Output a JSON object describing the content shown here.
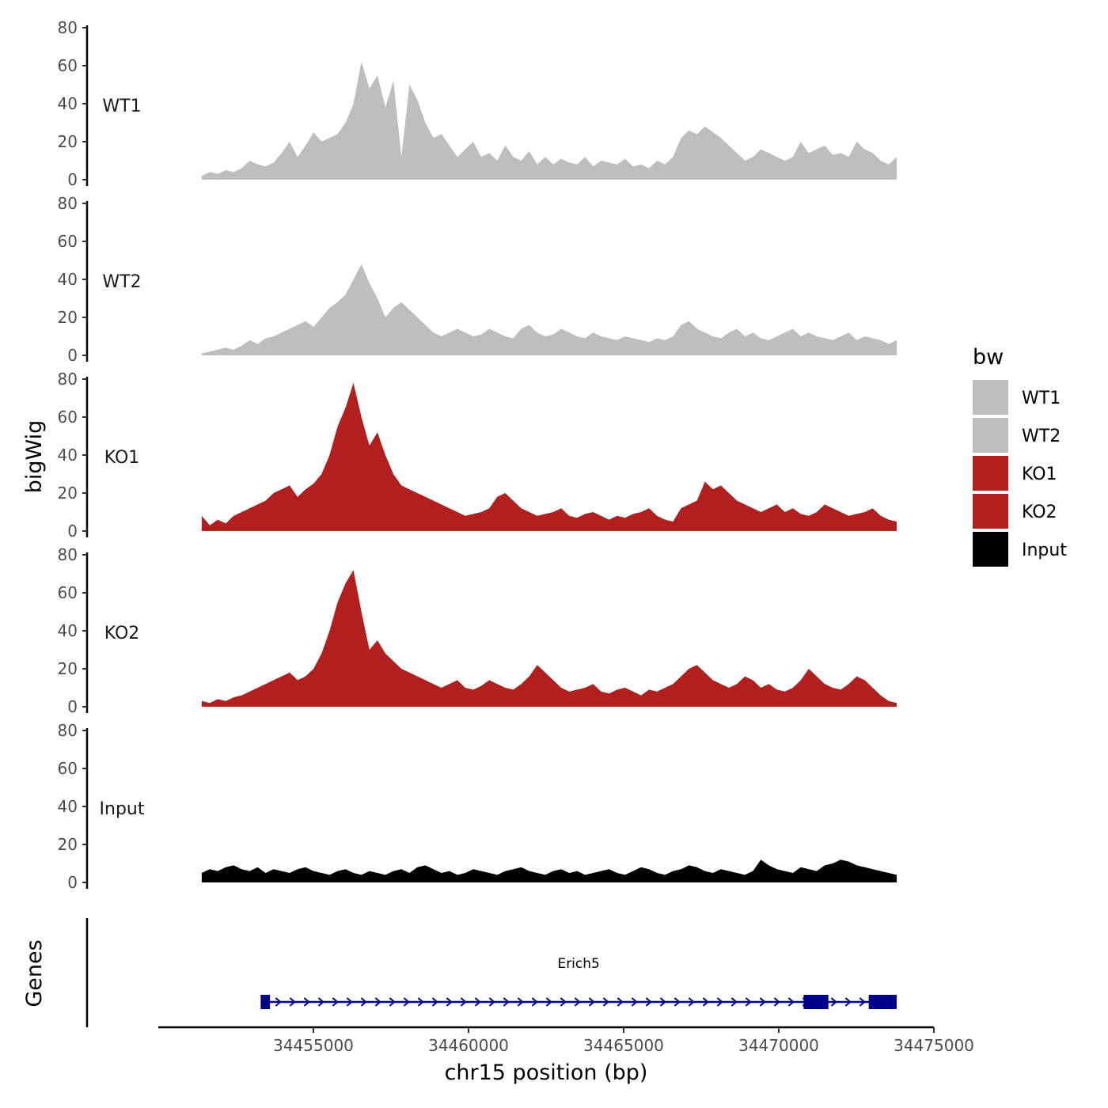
{
  "chart_data": {
    "type": "area",
    "y_title": "bigWig",
    "x_title": "chr15 position (bp)",
    "genes_title": "Genes",
    "legend_title": "bw",
    "ylim": [
      0,
      80
    ],
    "y_ticks": [
      "0",
      "20",
      "40",
      "60",
      "80"
    ],
    "xlim": [
      34450000,
      34475000
    ],
    "x_ticks": [
      34455000,
      34460000,
      34465000,
      34470000,
      34475000
    ],
    "x_tick_labels": [
      "34455000",
      "34460000",
      "34465000",
      "34470000",
      "34475000"
    ],
    "data_x_range": [
      34451400,
      34473800
    ],
    "colors": {
      "WT": "#bebebe",
      "KO": "#b21f1f",
      "Input": "#000000",
      "gene": "#00008b"
    },
    "series": [
      {
        "name": "WT1",
        "color": "#bebebe",
        "values": [
          2,
          4,
          3,
          5,
          4,
          6,
          10,
          8,
          7,
          9,
          14,
          20,
          12,
          18,
          25,
          20,
          22,
          24,
          30,
          40,
          62,
          48,
          55,
          38,
          52,
          12,
          50,
          42,
          30,
          22,
          24,
          18,
          12,
          16,
          20,
          12,
          14,
          10,
          18,
          12,
          10,
          15,
          8,
          12,
          8,
          11,
          9,
          8,
          12,
          7,
          10,
          9,
          8,
          11,
          7,
          8,
          6,
          10,
          8,
          12,
          22,
          26,
          24,
          28,
          25,
          22,
          18,
          14,
          10,
          12,
          16,
          14,
          12,
          10,
          12,
          20,
          14,
          16,
          18,
          13,
          14,
          12,
          20,
          16,
          14,
          10,
          8,
          12
        ]
      },
      {
        "name": "WT2",
        "color": "#bebebe",
        "values": [
          1,
          2,
          3,
          4,
          3,
          5,
          8,
          6,
          9,
          10,
          12,
          14,
          16,
          18,
          15,
          20,
          25,
          28,
          32,
          40,
          48,
          38,
          30,
          20,
          25,
          28,
          24,
          20,
          16,
          12,
          10,
          12,
          14,
          12,
          10,
          11,
          14,
          12,
          10,
          9,
          14,
          16,
          12,
          10,
          11,
          14,
          12,
          10,
          9,
          12,
          10,
          9,
          8,
          10,
          9,
          8,
          7,
          9,
          8,
          10,
          16,
          18,
          14,
          12,
          10,
          9,
          12,
          14,
          10,
          12,
          9,
          8,
          10,
          12,
          14,
          10,
          12,
          10,
          9,
          8,
          10,
          12,
          8,
          10,
          9,
          8,
          6,
          8
        ]
      },
      {
        "name": "KO1",
        "color": "#b21f1f",
        "values": [
          8,
          3,
          6,
          4,
          8,
          10,
          12,
          14,
          16,
          20,
          22,
          24,
          18,
          22,
          25,
          30,
          40,
          55,
          65,
          78,
          60,
          45,
          52,
          40,
          30,
          24,
          22,
          20,
          18,
          16,
          14,
          12,
          10,
          8,
          9,
          10,
          12,
          18,
          20,
          16,
          12,
          10,
          8,
          9,
          10,
          12,
          8,
          7,
          9,
          10,
          8,
          6,
          8,
          7,
          9,
          10,
          12,
          8,
          6,
          5,
          12,
          14,
          16,
          26,
          22,
          24,
          20,
          16,
          14,
          12,
          10,
          12,
          14,
          10,
          12,
          9,
          8,
          10,
          14,
          12,
          10,
          8,
          9,
          10,
          12,
          8,
          6,
          5
        ]
      },
      {
        "name": "KO2",
        "color": "#b21f1f",
        "values": [
          3,
          2,
          4,
          3,
          5,
          6,
          8,
          10,
          12,
          14,
          16,
          18,
          14,
          16,
          20,
          28,
          40,
          55,
          65,
          72,
          50,
          30,
          35,
          28,
          24,
          20,
          18,
          16,
          14,
          12,
          10,
          12,
          14,
          10,
          9,
          11,
          14,
          12,
          10,
          9,
          12,
          16,
          22,
          18,
          14,
          10,
          8,
          9,
          10,
          12,
          8,
          7,
          9,
          10,
          8,
          6,
          9,
          8,
          10,
          12,
          16,
          20,
          22,
          18,
          14,
          12,
          10,
          12,
          16,
          14,
          10,
          12,
          9,
          8,
          10,
          14,
          20,
          16,
          12,
          10,
          9,
          12,
          16,
          14,
          10,
          6,
          3,
          2
        ]
      },
      {
        "name": "Input",
        "color": "#000000",
        "values": [
          5,
          7,
          6,
          8,
          9,
          7,
          6,
          8,
          5,
          7,
          6,
          5,
          7,
          8,
          6,
          5,
          4,
          6,
          7,
          5,
          4,
          6,
          5,
          4,
          6,
          7,
          5,
          8,
          9,
          7,
          5,
          6,
          4,
          5,
          7,
          6,
          5,
          4,
          6,
          7,
          8,
          6,
          5,
          4,
          6,
          7,
          5,
          6,
          4,
          5,
          6,
          7,
          5,
          4,
          6,
          8,
          7,
          5,
          4,
          6,
          7,
          9,
          8,
          6,
          5,
          7,
          6,
          5,
          4,
          6,
          12,
          9,
          7,
          6,
          5,
          8,
          7,
          6,
          9,
          10,
          12,
          11,
          9,
          8,
          7,
          6,
          5,
          4
        ]
      }
    ],
    "legend": [
      "WT1",
      "WT2",
      "KO1",
      "KO2",
      "Input"
    ],
    "gene": {
      "name": "Erich5",
      "start": 34453300,
      "end": 34473800,
      "strand": "+",
      "exons": [
        [
          34453300,
          34453600
        ],
        [
          34470800,
          34471600
        ],
        [
          34472900,
          34473800
        ]
      ]
    }
  }
}
